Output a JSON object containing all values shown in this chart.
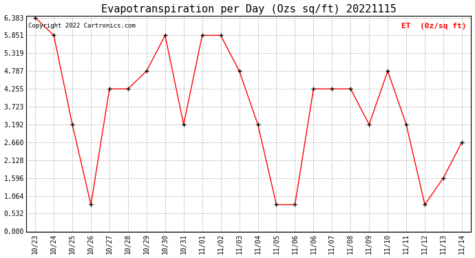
{
  "title": "Evapotranspiration per Day (Ozs sq/ft) 20221115",
  "copyright_text": "Copyright 2022 Cartronics.com",
  "legend_label": "ET  (0z/sq ft)",
  "categories": [
    "10/23",
    "10/24",
    "10/25",
    "10/26",
    "10/27",
    "10/28",
    "10/29",
    "10/30",
    "10/31",
    "11/01",
    "11/02",
    "11/03",
    "11/04",
    "11/05",
    "11/06",
    "11/06",
    "11/07",
    "11/08",
    "11/09",
    "11/10",
    "11/11",
    "11/12",
    "11/13",
    "11/14"
  ],
  "values": [
    6.383,
    5.851,
    3.192,
    0.798,
    4.255,
    4.255,
    4.787,
    5.851,
    3.192,
    5.851,
    5.851,
    4.787,
    3.192,
    0.798,
    0.798,
    4.255,
    4.255,
    4.255,
    3.192,
    4.787,
    3.192,
    0.798,
    1.596,
    2.66
  ],
  "yticks": [
    0.0,
    0.532,
    1.064,
    1.596,
    2.128,
    2.66,
    3.192,
    3.723,
    4.255,
    4.787,
    5.319,
    5.851,
    6.383
  ],
  "ymin": 0.0,
  "ymax": 6.383,
  "line_color": "red",
  "marker_color": "black",
  "grid_color": "#bbbbbb",
  "plot_bg_color": "#ffffff",
  "outer_bg_color": "#ffffff",
  "title_color": "black",
  "legend_color": "red",
  "copyright_color": "black",
  "title_fontsize": 11,
  "tick_fontsize": 7,
  "legend_fontsize": 8,
  "copyright_fontsize": 6.5
}
